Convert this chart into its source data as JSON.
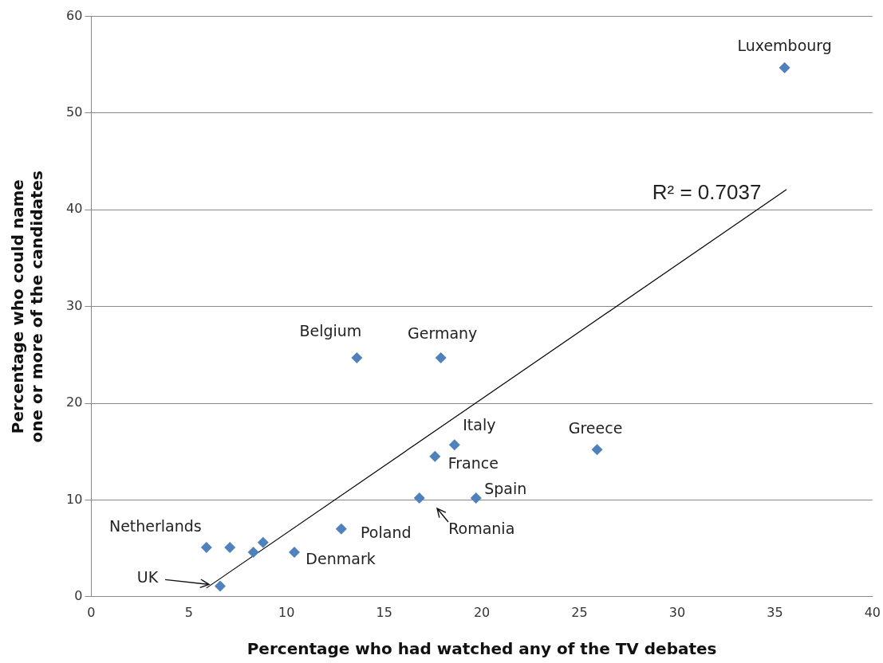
{
  "chart_data": {
    "type": "scatter",
    "xlabel": "Percentage who had watched any of the TV debates",
    "ylabel": "Percentage who could name one or more of the candidates",
    "xlim": [
      0,
      40
    ],
    "xticks": [
      0,
      5,
      10,
      15,
      20,
      25,
      30,
      35,
      40
    ],
    "ylim": [
      0,
      60
    ],
    "yticks": [
      0,
      10,
      20,
      30,
      40,
      50,
      60
    ],
    "grid": "y",
    "legend": false,
    "marker": "diamond",
    "annotations": [
      "R² = 0.7037"
    ],
    "series": [
      {
        "color": "#4f81bd",
        "x": [
          35.5,
          13.6,
          17.9,
          18.6,
          17.6,
          25.9,
          19.7,
          16.8,
          12.8,
          10.4,
          5.9,
          6.6,
          7.1,
          8.3,
          8.8
        ],
        "values": [
          54.7,
          24.7,
          24.7,
          15.7,
          14.5,
          15.2,
          10.2,
          10.2,
          7.0,
          4.6,
          5.1,
          1.1,
          5.1,
          4.6,
          5.6
        ],
        "value_labels": [
          "Luxembourg",
          "Belgium",
          "Germany",
          "Italy",
          "France",
          "Greece",
          "Spain",
          "Romania",
          "Poland",
          "Denmark",
          "Netherlands",
          "UK",
          null,
          null,
          null
        ]
      },
      {
        "type": "line",
        "color": "#000000",
        "x": [
          5.9,
          35.6
        ],
        "values": [
          0.9,
          42.1
        ],
        "marker": "none"
      }
    ]
  }
}
